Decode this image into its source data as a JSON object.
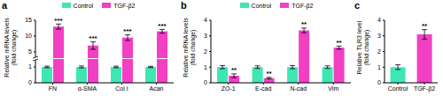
{
  "chart_data": [
    {
      "panel": "a",
      "type": "bar",
      "y_label": "Relative mRNA levels (fold change)",
      "categories": [
        "FN",
        "α-SMA",
        "Col I",
        "Acan"
      ],
      "series": [
        {
          "name": "Control",
          "color": "#3ee6b4",
          "values": [
            1,
            1,
            1,
            1
          ],
          "errors": [
            0.05,
            0.06,
            0.05,
            0.04
          ]
        },
        {
          "name": "TGF-β2",
          "color": "#f23fc4",
          "values": [
            13,
            7,
            9.5,
            11.5
          ],
          "errors": [
            0.8,
            1.2,
            0.9,
            0.6
          ],
          "significance": [
            "***",
            "***",
            "***",
            "***"
          ]
        }
      ],
      "ylim": [
        0,
        15
      ],
      "yticks": [
        0,
        1,
        5,
        10,
        15
      ],
      "y_break": [
        1.5,
        3
      ],
      "legend": "top"
    },
    {
      "panel": "b",
      "type": "bar",
      "y_label": "Relative mRNA levels (fold change)",
      "categories": [
        "ZO-1",
        "E-cad",
        "N-cad",
        "Vim"
      ],
      "series": [
        {
          "name": "Control",
          "color": "#3ee6b4",
          "values": [
            1,
            1,
            1,
            1
          ],
          "errors": [
            0.1,
            0.08,
            0.1,
            0.08
          ]
        },
        {
          "name": "TGF-β2",
          "color": "#f23fc4",
          "values": [
            0.45,
            0.3,
            3.35,
            2.25
          ],
          "errors": [
            0.12,
            0.05,
            0.15,
            0.1
          ],
          "significance": [
            "**",
            "**",
            "**",
            "**"
          ]
        }
      ],
      "ylim": [
        0,
        4
      ],
      "yticks": [
        0,
        1,
        2,
        3,
        4
      ],
      "legend": "top"
    },
    {
      "panel": "c",
      "type": "bar",
      "y_label": "Relative TLR3 level (fold change)",
      "categories": [
        "Control",
        "TGF-β2"
      ],
      "values": [
        1,
        3.1
      ],
      "errors": [
        0.15,
        0.3
      ],
      "colors": [
        "#3ee6b4",
        "#f23fc4"
      ],
      "significance": [
        null,
        "**"
      ],
      "ylim": [
        0,
        4
      ],
      "yticks": [
        0,
        1,
        2,
        3,
        4
      ]
    }
  ]
}
